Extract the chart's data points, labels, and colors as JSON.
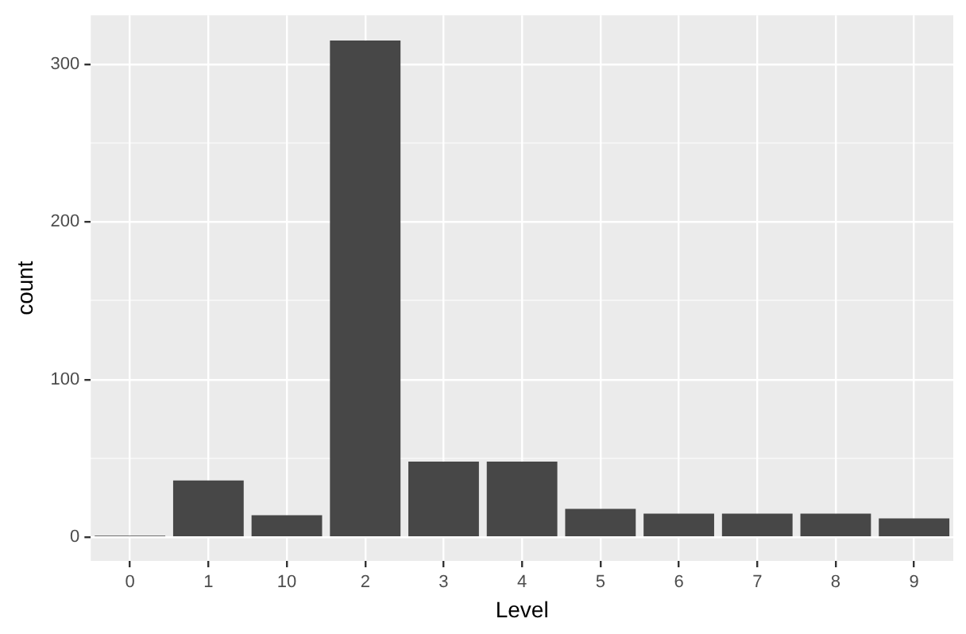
{
  "chart_data": {
    "type": "bar",
    "xlabel": "Level",
    "ylabel": "count",
    "categories": [
      "0",
      "1",
      "10",
      "2",
      "3",
      "4",
      "5",
      "6",
      "7",
      "8",
      "9"
    ],
    "values": [
      1,
      36,
      14,
      315,
      48,
      48,
      18,
      15,
      15,
      15,
      12
    ],
    "color": "#474747",
    "ylim": [
      -15,
      331
    ],
    "yticks": [
      0,
      {
        "value": 50,
        "label": null
      },
      100,
      {
        "value": 150,
        "label": null
      },
      200,
      {
        "value": 250,
        "label": null
      },
      300
    ],
    "grid": true,
    "legend": false
  }
}
